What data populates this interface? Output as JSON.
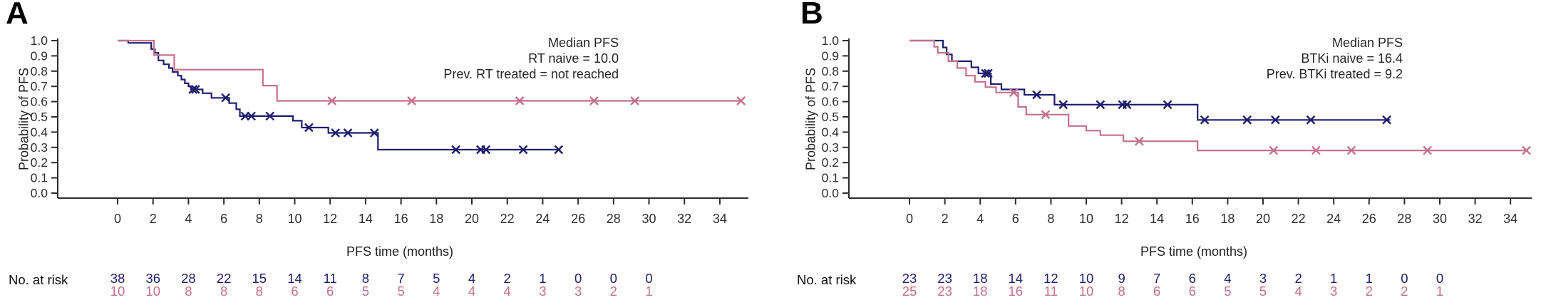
{
  "figure_bg": "#ffffff",
  "chart_data": [
    {
      "type": "line",
      "subtype": "kaplan-meier-step",
      "panel_label": "A",
      "legend_lines": [
        "Median PFS",
        "RT naive = 10.0",
        "Prev. RT treated = not reached"
      ],
      "legend_position": "top-right",
      "xlabel": "PFS time (months)",
      "ylabel": "Probability of PFS",
      "xlim": [
        0,
        35.6
      ],
      "ylim": [
        0.0,
        1.0
      ],
      "grid": false,
      "x_ticks": [
        0,
        2,
        4,
        6,
        8,
        10,
        12,
        14,
        16,
        18,
        20,
        22,
        24,
        26,
        28,
        30,
        32,
        34
      ],
      "y_ticks": [
        "0.0",
        "0.1",
        "0.2",
        "0.3",
        "0.4",
        "0.5",
        "0.6",
        "0.7",
        "0.8",
        "0.9",
        "1.0"
      ],
      "series": [
        {
          "name": "RT naive",
          "median_pfs": "10.0",
          "color": "#1e1e6e",
          "steps": [
            [
              0,
              1.0
            ],
            [
              0.6,
              0.985
            ],
            [
              1.9,
              0.945
            ],
            [
              2.1,
              0.92
            ],
            [
              2.3,
              0.87
            ],
            [
              2.6,
              0.845
            ],
            [
              2.9,
              0.82
            ],
            [
              3.1,
              0.795
            ],
            [
              3.4,
              0.77
            ],
            [
              3.6,
              0.745
            ],
            [
              3.8,
              0.72
            ],
            [
              4.0,
              0.7
            ],
            [
              4.15,
              0.68
            ],
            [
              4.8,
              0.655
            ],
            [
              5.3,
              0.625
            ],
            [
              6.3,
              0.59
            ],
            [
              6.7,
              0.55
            ],
            [
              6.9,
              0.505
            ],
            [
              9.9,
              0.475
            ],
            [
              10.4,
              0.43
            ],
            [
              11.9,
              0.395
            ],
            [
              14.7,
              0.285
            ]
          ],
          "censor_marks": [
            [
              4.25,
              0.68
            ],
            [
              4.4,
              0.68
            ],
            [
              6.1,
              0.625
            ],
            [
              7.2,
              0.505
            ],
            [
              7.55,
              0.505
            ],
            [
              8.6,
              0.505
            ],
            [
              10.8,
              0.43
            ],
            [
              12.3,
              0.395
            ],
            [
              13.0,
              0.395
            ],
            [
              14.5,
              0.395
            ],
            [
              19.1,
              0.285
            ],
            [
              20.5,
              0.285
            ],
            [
              20.8,
              0.285
            ],
            [
              22.9,
              0.285
            ],
            [
              24.9,
              0.285
            ]
          ],
          "end_time": 25.0
        },
        {
          "name": "Prev. RT treated",
          "median_pfs": "not reached",
          "color": "#c4718a",
          "steps": [
            [
              0,
              1.0
            ],
            [
              2.05,
              0.905
            ],
            [
              3.2,
              0.81
            ],
            [
              8.2,
              0.705
            ],
            [
              9.0,
              0.605
            ]
          ],
          "censor_marks": [
            [
              12.1,
              0.605
            ],
            [
              16.6,
              0.605
            ],
            [
              22.7,
              0.605
            ],
            [
              26.9,
              0.605
            ],
            [
              29.2,
              0.605
            ],
            [
              35.2,
              0.605
            ]
          ],
          "end_time": 35.2
        }
      ],
      "at_risk": {
        "label": "No. at risk",
        "times": [
          0,
          2,
          4,
          6,
          8,
          10,
          12,
          14,
          16,
          18,
          20,
          22,
          24,
          26,
          28,
          30
        ],
        "rows": [
          {
            "series": "RT naive",
            "color": "#1e1e6e",
            "values": [
              38,
              36,
              28,
              22,
              15,
              14,
              11,
              8,
              7,
              5,
              4,
              2,
              1,
              0,
              0,
              0
            ]
          },
          {
            "series": "Prev. RT treated",
            "color": "#c4718a",
            "values": [
              10,
              10,
              8,
              8,
              8,
              6,
              6,
              5,
              5,
              4,
              4,
              4,
              3,
              3,
              2,
              1
            ]
          }
        ]
      }
    },
    {
      "type": "line",
      "subtype": "kaplan-meier-step",
      "panel_label": "B",
      "legend_lines": [
        "Median PFS",
        "BTKi naive = 16.4",
        "Prev. BTKi treated = 9.2"
      ],
      "legend_position": "top-right",
      "xlabel": "PFS time (months)",
      "ylabel": "Probability of PFS",
      "xlim": [
        0,
        35.6
      ],
      "ylim": [
        0.0,
        1.0
      ],
      "grid": false,
      "x_ticks": [
        0,
        2,
        4,
        6,
        8,
        10,
        12,
        14,
        16,
        18,
        20,
        22,
        24,
        26,
        28,
        30,
        32,
        34
      ],
      "y_ticks": [
        "0.0",
        "0.1",
        "0.2",
        "0.3",
        "0.4",
        "0.5",
        "0.6",
        "0.7",
        "0.8",
        "0.9",
        "1.0"
      ],
      "series": [
        {
          "name": "BTKi naive",
          "median_pfs": "16.4",
          "color": "#1e1e6e",
          "steps": [
            [
              0,
              1.0
            ],
            [
              1.9,
              0.955
            ],
            [
              2.1,
              0.91
            ],
            [
              2.4,
              0.865
            ],
            [
              3.5,
              0.825
            ],
            [
              3.9,
              0.785
            ],
            [
              4.6,
              0.715
            ],
            [
              5.2,
              0.68
            ],
            [
              6.5,
              0.645
            ],
            [
              8.2,
              0.58
            ],
            [
              16.3,
              0.48
            ]
          ],
          "censor_marks": [
            [
              4.3,
              0.785
            ],
            [
              4.45,
              0.785
            ],
            [
              7.2,
              0.645
            ],
            [
              8.7,
              0.58
            ],
            [
              10.8,
              0.58
            ],
            [
              12.05,
              0.58
            ],
            [
              12.3,
              0.58
            ],
            [
              14.6,
              0.58
            ],
            [
              16.7,
              0.48
            ],
            [
              19.1,
              0.48
            ],
            [
              20.7,
              0.48
            ],
            [
              22.7,
              0.48
            ],
            [
              27.0,
              0.48
            ]
          ],
          "end_time": 27.2
        },
        {
          "name": "Prev. BTKi treated",
          "median_pfs": "9.2",
          "color": "#c4718a",
          "steps": [
            [
              0,
              1.0
            ],
            [
              1.4,
              0.96
            ],
            [
              1.6,
              0.92
            ],
            [
              2.2,
              0.865
            ],
            [
              2.7,
              0.82
            ],
            [
              3.2,
              0.77
            ],
            [
              3.7,
              0.73
            ],
            [
              4.3,
              0.695
            ],
            [
              4.9,
              0.66
            ],
            [
              6.15,
              0.565
            ],
            [
              6.6,
              0.515
            ],
            [
              9.0,
              0.44
            ],
            [
              10.0,
              0.41
            ],
            [
              10.8,
              0.38
            ],
            [
              12.1,
              0.34
            ],
            [
              16.3,
              0.28
            ]
          ],
          "censor_marks": [
            [
              5.9,
              0.66
            ],
            [
              7.7,
              0.515
            ],
            [
              13.0,
              0.34
            ],
            [
              20.6,
              0.28
            ],
            [
              23.0,
              0.28
            ],
            [
              25.0,
              0.28
            ],
            [
              29.3,
              0.28
            ],
            [
              34.9,
              0.28
            ]
          ],
          "end_time": 35.0
        }
      ],
      "at_risk": {
        "label": "No. at risk",
        "times": [
          0,
          2,
          4,
          6,
          8,
          10,
          12,
          14,
          16,
          18,
          20,
          22,
          24,
          26,
          28,
          30
        ],
        "rows": [
          {
            "series": "BTKi naive",
            "color": "#1e1e6e",
            "values": [
              23,
              23,
              18,
              14,
              12,
              10,
              9,
              7,
              6,
              4,
              3,
              2,
              1,
              1,
              0,
              0
            ]
          },
          {
            "series": "Prev. BTKi treated",
            "color": "#c4718a",
            "values": [
              25,
              23,
              18,
              16,
              11,
              10,
              8,
              6,
              6,
              5,
              5,
              4,
              3,
              2,
              2,
              1
            ]
          }
        ]
      }
    }
  ],
  "axis_color": "#2d2d2d",
  "tick_text_color": "#2f2f2f"
}
